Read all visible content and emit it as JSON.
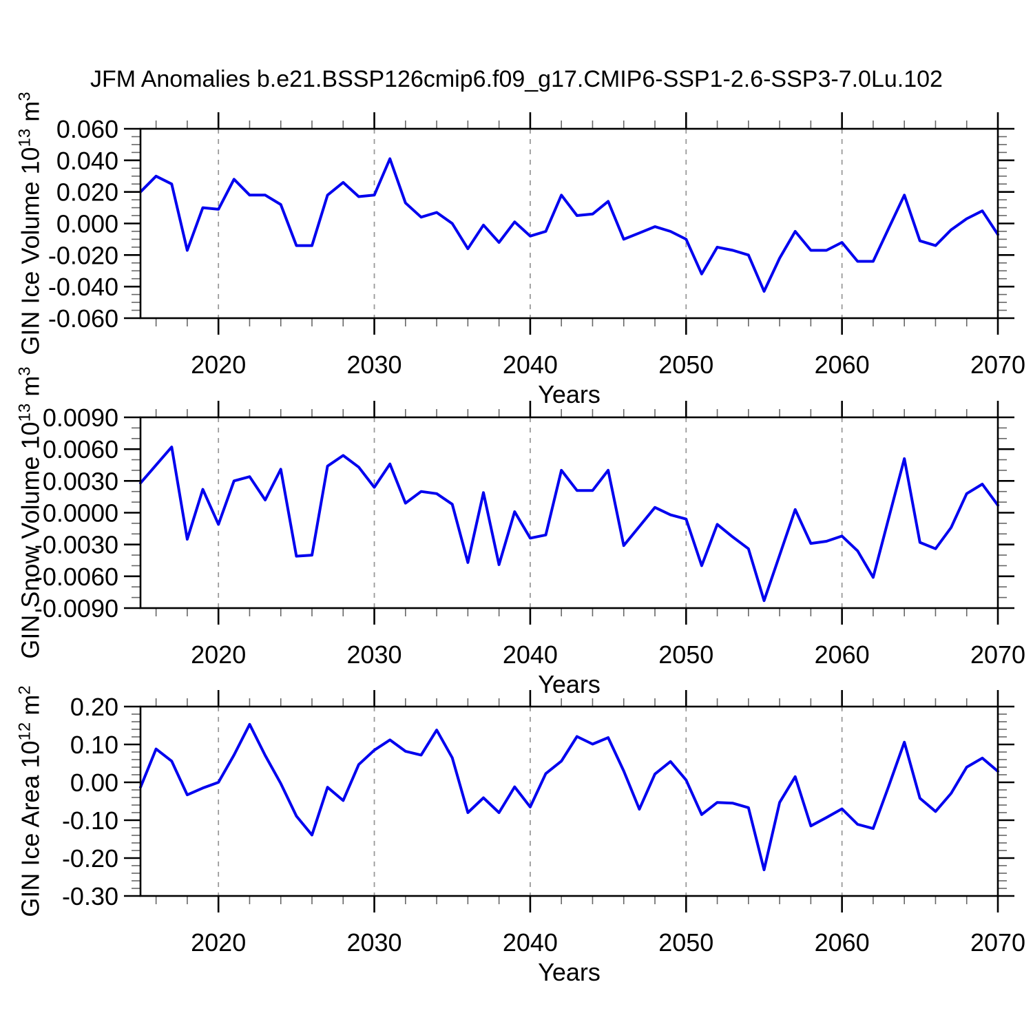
{
  "figure_title": "JFM Anomalies b.e21.BSSP126cmip6.f09_g17.CMIP6-SSP1-2.6-SSP3-7.0Lu.102",
  "chart_data": {
    "type": "line",
    "figure_title": "JFM Anomalies b.e21.BSSP126cmip6.f09_g17.CMIP6-SSP1-2.6-SSP3-7.0Lu.102",
    "x_label": "Years",
    "line_color": "#0000EE",
    "grid_color": "#999999",
    "years": [
      2015,
      2016,
      2017,
      2018,
      2019,
      2020,
      2021,
      2022,
      2023,
      2024,
      2025,
      2026,
      2027,
      2028,
      2029,
      2030,
      2031,
      2032,
      2033,
      2034,
      2035,
      2036,
      2037,
      2038,
      2039,
      2040,
      2041,
      2042,
      2043,
      2044,
      2045,
      2046,
      2047,
      2048,
      2049,
      2050,
      2051,
      2052,
      2053,
      2054,
      2055,
      2056,
      2057,
      2058,
      2059,
      2060,
      2061,
      2062,
      2063,
      2064,
      2065,
      2066,
      2067,
      2068,
      2069,
      2070
    ],
    "x_axis": {
      "start": 2015,
      "end": 2070,
      "major_ticks": [
        2020,
        2030,
        2040,
        2050,
        2060,
        2070
      ],
      "major_tick_labels": [
        "2020",
        "2030",
        "2040",
        "2050",
        "2060",
        "2070"
      ],
      "minor_step_years": 2,
      "gridline_decades": [
        2020,
        2030,
        2040,
        2050,
        2060
      ]
    },
    "panels": [
      {
        "name": "gin-ice-volume",
        "ylabel_plain": "GIN Ice Volume 10^13 m^3",
        "ylabel_rich": {
          "base1": "GIN Ice Volume 10",
          "sup1": "13",
          "base2": " m",
          "sup2": "3"
        },
        "ylim": [
          -0.06,
          0.06
        ],
        "ytick_labels": [
          "0.060",
          "0.040",
          "0.020",
          "0.000",
          "-0.020",
          "-0.040",
          "-0.060"
        ],
        "y_minor_per_major": 3,
        "values": [
          0.02,
          0.03,
          0.025,
          -0.017,
          0.01,
          0.009,
          0.028,
          0.018,
          0.018,
          0.012,
          -0.014,
          -0.014,
          0.018,
          0.026,
          0.017,
          0.018,
          0.041,
          0.013,
          0.004,
          0.007,
          0.0,
          -0.016,
          -0.001,
          -0.012,
          0.001,
          -0.008,
          -0.005,
          0.018,
          0.005,
          0.006,
          0.014,
          -0.01,
          -0.006,
          -0.002,
          -0.005,
          -0.01,
          -0.032,
          -0.015,
          -0.017,
          -0.02,
          -0.043,
          -0.022,
          -0.005,
          -0.017,
          -0.017,
          -0.012,
          -0.024,
          -0.024,
          -0.003,
          0.018,
          -0.011,
          -0.014,
          -0.004,
          0.003,
          0.008,
          -0.007
        ]
      },
      {
        "name": "gin-snow-volume",
        "ylabel_plain": "GIN Snow Volume 10^13 m^3",
        "ylabel_rich": {
          "base1": "GIN Snow Volume 10",
          "sup1": "13",
          "base2": " m",
          "sup2": "3"
        },
        "ylim": [
          -0.009,
          0.009
        ],
        "ytick_labels": [
          "0.0090",
          "0.0060",
          "0.0030",
          "0.0000",
          "-0.0030",
          "-0.0060",
          "-0.0090"
        ],
        "y_minor_per_major": 2,
        "values": [
          0.0028,
          0.0045,
          0.0062,
          -0.0025,
          0.0022,
          -0.0011,
          0.003,
          0.0034,
          0.0012,
          0.0041,
          -0.0041,
          -0.004,
          0.0044,
          0.0054,
          0.0043,
          0.0024,
          0.0046,
          0.0009,
          0.002,
          0.0018,
          0.0008,
          -0.0047,
          0.0019,
          -0.0049,
          0.0001,
          -0.0024,
          -0.0021,
          0.004,
          0.0021,
          0.0021,
          0.004,
          -0.0031,
          -0.0013,
          0.0005,
          -0.0002,
          -0.0006,
          -0.005,
          -0.0011,
          -0.0023,
          -0.0034,
          -0.0083,
          -0.004,
          0.0003,
          -0.0029,
          -0.0027,
          -0.0022,
          -0.0036,
          -0.0061,
          -0.0005,
          0.0051,
          -0.0028,
          -0.0034,
          -0.0014,
          0.0018,
          0.0027,
          0.0007
        ]
      },
      {
        "name": "gin-ice-area",
        "ylabel_plain": "GIN Ice Area 10^12 m^2",
        "ylabel_rich": {
          "base1": "GIN Ice Area 10",
          "sup1": "12",
          "base2": " m",
          "sup2": "2"
        },
        "ylim": [
          -0.3,
          0.2
        ],
        "ytick_labels": [
          "0.20",
          "0.10",
          "0.00",
          "-0.10",
          "-0.20",
          "-0.30"
        ],
        "y_minor_per_major": 4,
        "values": [
          -0.013,
          0.088,
          0.056,
          -0.033,
          -0.015,
          0.0,
          0.072,
          0.153,
          0.071,
          -0.003,
          -0.089,
          -0.139,
          -0.013,
          -0.048,
          0.047,
          0.085,
          0.112,
          0.082,
          0.072,
          0.138,
          0.065,
          -0.08,
          -0.041,
          -0.08,
          -0.012,
          -0.065,
          0.023,
          0.056,
          0.121,
          0.101,
          0.118,
          0.03,
          -0.071,
          0.022,
          0.055,
          0.006,
          -0.085,
          -0.053,
          -0.055,
          -0.067,
          -0.231,
          -0.053,
          0.015,
          -0.115,
          -0.093,
          -0.07,
          -0.111,
          -0.122,
          -0.01,
          0.106,
          -0.042,
          -0.077,
          -0.029,
          0.04,
          0.064,
          0.029
        ]
      }
    ]
  }
}
